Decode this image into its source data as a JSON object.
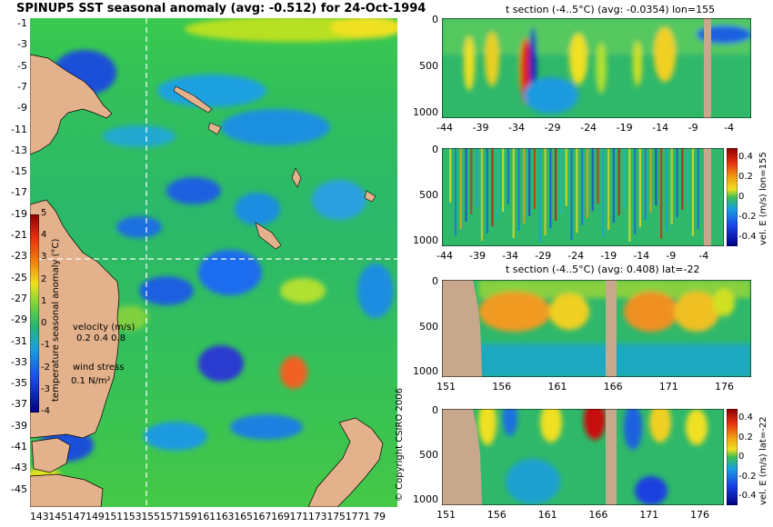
{
  "map": {
    "title": "SPINUP5 SST seasonal anomaly (avg: -0.512) for 24-Oct-1994",
    "lat_ticks": [
      "-1",
      "-3",
      "-5",
      "-7",
      "-9",
      "-11",
      "-13",
      "-15",
      "-17",
      "-19",
      "-21",
      "-23",
      "-25",
      "-27",
      "-29",
      "-31",
      "-33",
      "-35",
      "-37",
      "-39",
      "-41",
      "-43",
      "-45"
    ],
    "lon_ticks_text": "1431451471491511531551571591611631651671691711731751771 79",
    "colorbar": {
      "label": "temperature seasonal anomaly (°C)",
      "ticks": [
        "5",
        "4",
        "3",
        "2",
        "1",
        "0",
        "-1",
        "-2",
        "-3",
        "-4"
      ],
      "range": [
        -4,
        5
      ]
    },
    "velocity_label": "velocity (m/s)",
    "velocity_scale": "0.2 0.4 0.8",
    "wind_label": "wind stress",
    "wind_scale": "0.1 N/m²",
    "copyright": "© Copyright CSIRO 2006",
    "guide_lon": 155,
    "guide_lat": -22
  },
  "panels": [
    {
      "title": "t section (-4..5°C) (avg: -0.0354) lon=155",
      "y_ticks": [
        "0",
        "500",
        "1000"
      ],
      "x_ticks": [
        "-44",
        "-39",
        "-34",
        "-29",
        "-24",
        "-19",
        "-14",
        "-9",
        "-4"
      ]
    },
    {
      "title": "",
      "y_ticks": [
        "0",
        "500",
        "1000"
      ],
      "x_ticks": [
        "-44",
        "-39",
        "-34",
        "-29",
        "-24",
        "-19",
        "-14",
        "-9",
        "-4"
      ],
      "colorbar_label": "vel. E (m/s) lon=155",
      "colorbar_ticks": [
        "0.4",
        "0.2",
        "0",
        "-0.2",
        "-0.4"
      ]
    },
    {
      "title": "t section (-4..5°C) (avg: 0.408) lat=-22",
      "y_ticks": [
        "0",
        "500",
        "1000"
      ],
      "x_ticks": [
        "151",
        "156",
        "161",
        "166",
        "171",
        "176"
      ]
    },
    {
      "title": "",
      "y_ticks": [
        "0",
        "500",
        "1000"
      ],
      "x_ticks": [
        "151",
        "156",
        "161",
        "166",
        "171",
        "176"
      ],
      "colorbar_label": "vel. E (m/s) lat=-22",
      "colorbar_ticks": [
        "0.4",
        "0.2",
        "0",
        "-0.2",
        "-0.4"
      ]
    }
  ],
  "colors": {
    "land": "#e3b18b",
    "ocean_base": "#2fbf52",
    "section_land": "#c8a88c"
  }
}
